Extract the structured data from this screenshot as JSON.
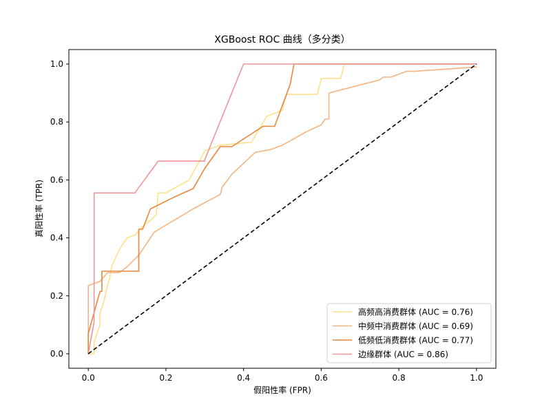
{
  "chart_data": {
    "type": "line",
    "title": "XGBoost ROC 曲线（多分类）",
    "xlabel": "假阳性率 (FPR)",
    "ylabel": "真阳性率 (TPR)",
    "xlim": [
      -0.05,
      1.05
    ],
    "ylim": [
      -0.05,
      1.05
    ],
    "xticks": [
      0.0,
      0.2,
      0.4,
      0.6,
      0.8,
      1.0
    ],
    "yticks": [
      0.0,
      0.2,
      0.4,
      0.6,
      0.8,
      1.0
    ],
    "xtick_labels": [
      "0.0",
      "0.2",
      "0.4",
      "0.6",
      "0.8",
      "1.0"
    ],
    "ytick_labels": [
      "0.0",
      "0.2",
      "0.4",
      "0.6",
      "0.8",
      "1.0"
    ],
    "grid": false,
    "legend_position": "lower-right",
    "diagonal": {
      "x": [
        0,
        1
      ],
      "y": [
        0,
        1
      ],
      "color": "#000000",
      "style": "dashed"
    },
    "series": [
      {
        "name": "高频高消费群体 (AUC = 0.76)",
        "color": "#fde08a",
        "x": [
          0,
          0.015,
          0.015,
          0.025,
          0.03,
          0.03,
          0.04,
          0.05,
          0.055,
          0.06,
          0.07,
          0.08,
          0.085,
          0.09,
          0.1,
          0.12,
          0.14,
          0.16,
          0.175,
          0.18,
          0.2,
          0.26,
          0.3,
          0.34,
          0.42,
          0.46,
          0.5,
          0.51,
          0.56,
          0.59,
          0.6,
          0.65,
          0.66,
          1.0
        ],
        "y": [
          0,
          0,
          0.04,
          0.08,
          0.1,
          0.14,
          0.18,
          0.24,
          0.26,
          0.3,
          0.33,
          0.36,
          0.37,
          0.38,
          0.4,
          0.41,
          0.44,
          0.46,
          0.48,
          0.555,
          0.555,
          0.6,
          0.7,
          0.72,
          0.73,
          0.82,
          0.84,
          0.895,
          0.895,
          0.895,
          0.95,
          0.95,
          1.0,
          1.0
        ]
      },
      {
        "name": "中频中消费群体 (AUC = 0.69)",
        "color": "#f6b37f",
        "x": [
          0,
          0.0,
          0.03,
          0.05,
          0.06,
          0.08,
          0.1,
          0.13,
          0.17,
          0.27,
          0.34,
          0.345,
          0.37,
          0.43,
          0.47,
          0.48,
          0.5,
          0.56,
          0.6,
          0.61,
          0.62,
          0.62,
          0.75,
          0.76,
          0.78,
          0.8,
          0.82,
          0.84,
          1.0
        ],
        "y": [
          0,
          0.235,
          0.25,
          0.28,
          0.28,
          0.28,
          0.3,
          0.34,
          0.42,
          0.5,
          0.55,
          0.575,
          0.62,
          0.695,
          0.705,
          0.71,
          0.72,
          0.765,
          0.79,
          0.81,
          0.81,
          0.9,
          0.945,
          0.955,
          0.955,
          0.965,
          0.975,
          0.975,
          0.99
        ]
      },
      {
        "name": "低频低消费群体 (AUC = 0.77)",
        "color": "#e8873a",
        "x": [
          0,
          0.0,
          0.0,
          0.03,
          0.035,
          0.035,
          0.13,
          0.13,
          0.14,
          0.16,
          0.16,
          0.22,
          0.27,
          0.3,
          0.34,
          0.37,
          0.45,
          0.48,
          0.48,
          0.52,
          0.53,
          1.0
        ],
        "y": [
          0,
          0.05,
          0.07,
          0.215,
          0.215,
          0.285,
          0.285,
          0.43,
          0.43,
          0.5,
          0.5,
          0.54,
          0.57,
          0.64,
          0.715,
          0.715,
          0.785,
          0.785,
          0.785,
          0.93,
          1.0,
          1.0
        ]
      },
      {
        "name": "边缘群体 (AUC = 0.86)",
        "color": "#f09398",
        "x": [
          0,
          0.015,
          0.015,
          0.12,
          0.18,
          0.3,
          0.3,
          0.4,
          1.0
        ],
        "y": [
          0,
          0.11,
          0.555,
          0.555,
          0.665,
          0.665,
          0.67,
          1.0,
          1.0
        ]
      }
    ]
  }
}
